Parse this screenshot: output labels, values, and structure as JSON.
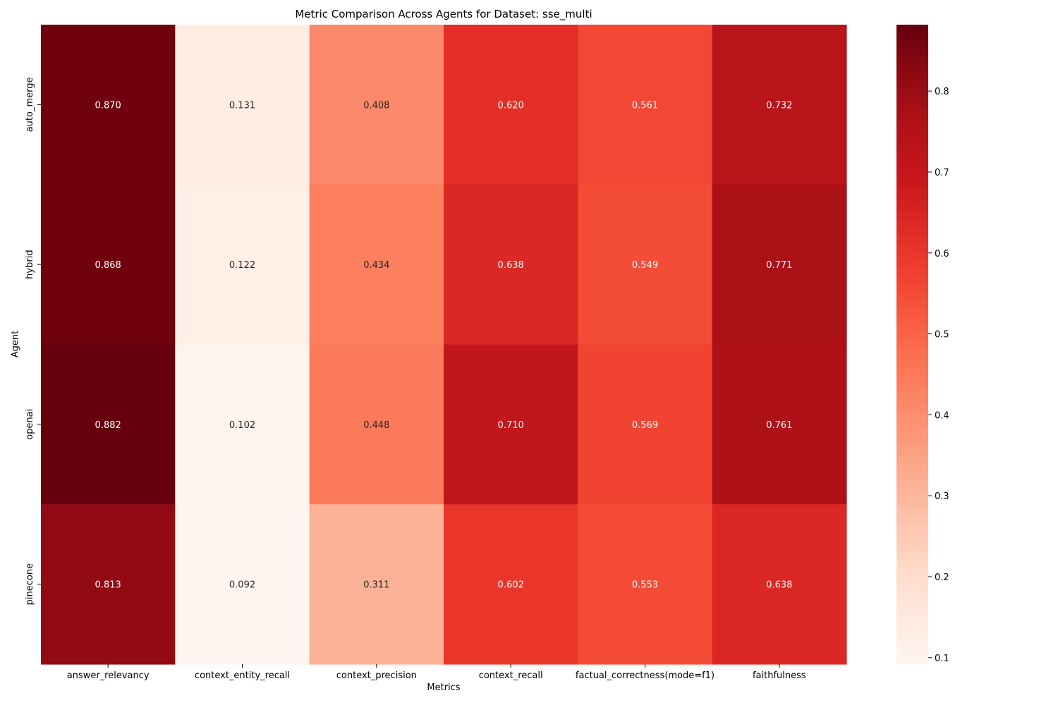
{
  "chart_data": {
    "type": "heatmap",
    "title": "Metric Comparison Across Agents for Dataset: sse_multi",
    "xlabel": "Metrics",
    "ylabel": "Agent",
    "columns": [
      "answer_relevancy",
      "context_entity_recall",
      "context_precision",
      "context_recall",
      "factual_correctness(mode=f1)",
      "faithfulness"
    ],
    "rows": [
      "auto_merge",
      "hybrid",
      "openai",
      "pinecone"
    ],
    "values": [
      [
        0.87,
        0.131,
        0.408,
        0.62,
        0.561,
        0.732
      ],
      [
        0.868,
        0.122,
        0.434,
        0.638,
        0.549,
        0.771
      ],
      [
        0.882,
        0.102,
        0.448,
        0.71,
        0.569,
        0.761
      ],
      [
        0.813,
        0.092,
        0.311,
        0.602,
        0.553,
        0.638
      ]
    ],
    "value_format": "0.000",
    "colormap": "Reds",
    "colorbar": {
      "vmin": 0.092,
      "vmax": 0.882,
      "ticks": [
        0.1,
        0.2,
        0.3,
        0.4,
        0.5,
        0.6,
        0.7,
        0.8
      ]
    },
    "grid": false
  }
}
